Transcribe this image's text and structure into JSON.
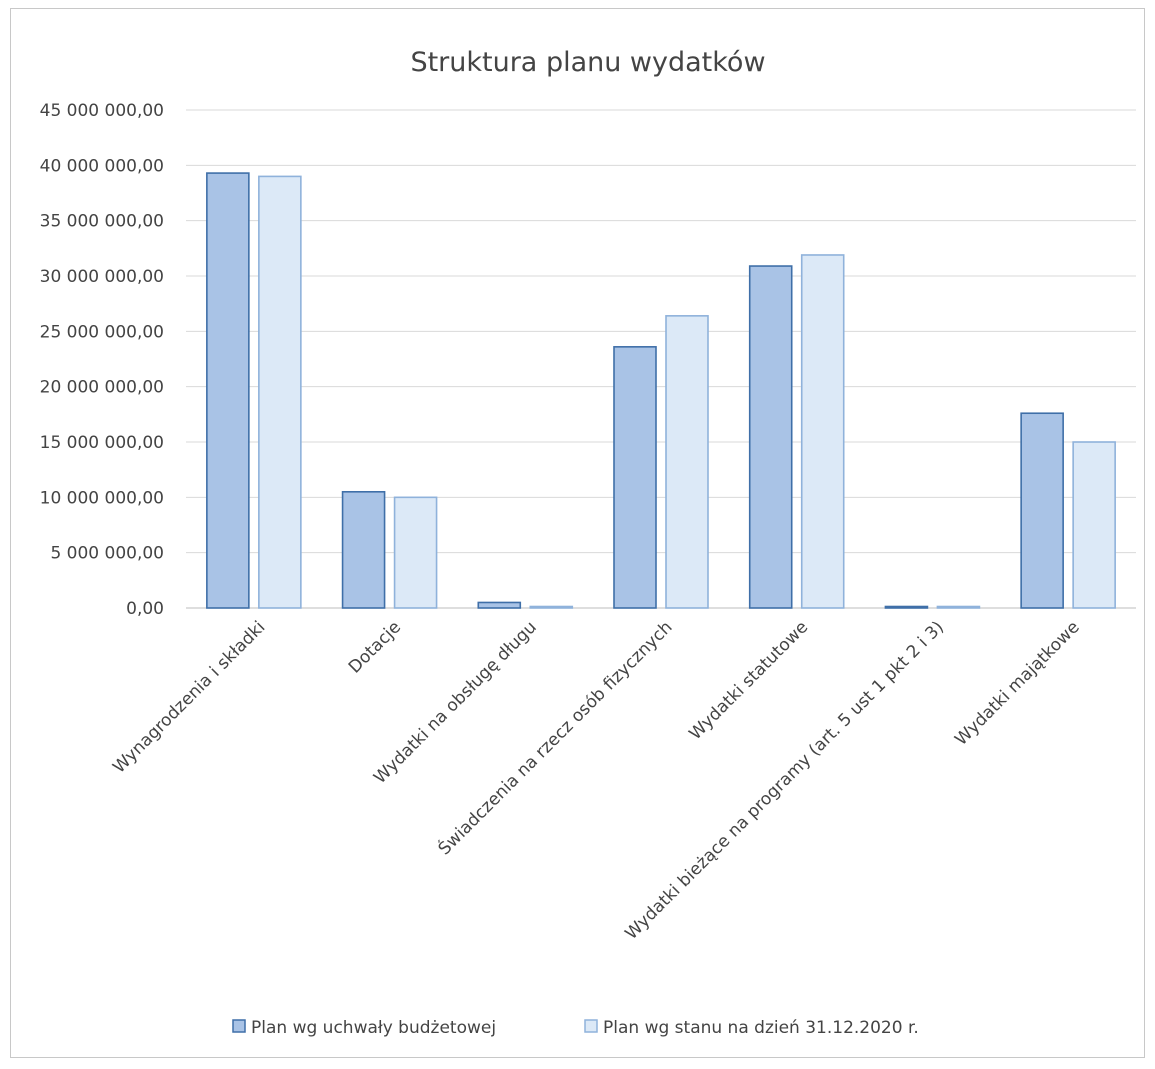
{
  "chart_data": {
    "type": "bar",
    "title": "Struktura  planu  wydatków",
    "xlabel": "",
    "ylabel": "",
    "ylim": [
      0,
      45000000
    ],
    "y_ticks": [
      0,
      5000000,
      10000000,
      15000000,
      20000000,
      25000000,
      30000000,
      35000000,
      40000000,
      45000000
    ],
    "y_tick_labels": [
      "0,00",
      "5 000 000,00",
      "10 000 000,00",
      "15 000 000,00",
      "20 000 000,00",
      "25 000 000,00",
      "30 000 000,00",
      "35 000 000,00",
      "40 000 000,00",
      "45 000 000,00"
    ],
    "grid": true,
    "legend_position": "bottom",
    "categories": [
      "Wynagrodzenia i składki",
      "Dotacje",
      "Wydatki na obsługę długu",
      "Świadczenia na rzecz osób fizycznych",
      "Wydatki statutowe",
      "Wydatki bieżące na programy (art. 5 ust 1 pkt 2 i 3)",
      "Wydatki majątkowe"
    ],
    "series": [
      {
        "name": "Plan wg uchwały budżetowej",
        "color": "#a9c3e6",
        "stroke": "#3f6fa8",
        "values": [
          39300000,
          10500000,
          500000,
          23600000,
          30900000,
          0,
          17600000
        ]
      },
      {
        "name": "Plan wg stanu na dzień 31.12.2020 r.",
        "color": "#dce9f7",
        "stroke": "#8fb2db",
        "values": [
          39000000,
          10000000,
          50000,
          26400000,
          31900000,
          30000,
          15000000
        ]
      }
    ]
  }
}
